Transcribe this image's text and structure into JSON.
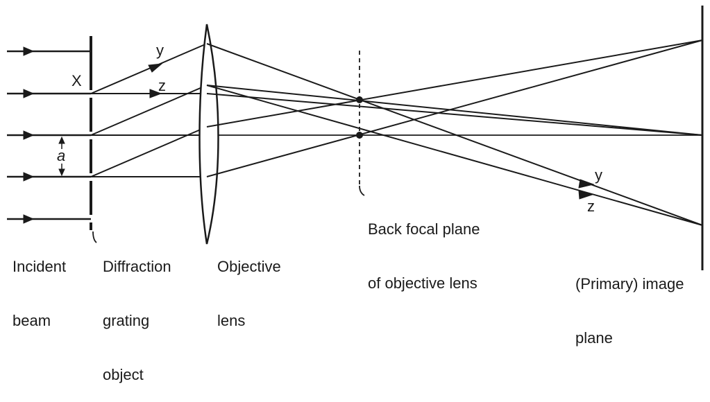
{
  "diagram": {
    "labels": {
      "x": "X",
      "y_upper": "y",
      "z_upper": "z",
      "a": "a",
      "y_lower": "y",
      "z_lower": "z",
      "incident_beam_1": "Incident",
      "incident_beam_2": "beam",
      "grating_1": "Diffraction",
      "grating_2": "grating",
      "grating_3": "object",
      "lens_1": "Objective",
      "lens_2": "lens",
      "bfp_1": "Back focal plane",
      "bfp_2": "of objective lens",
      "image_1": "(Primary) image",
      "image_2": "plane"
    }
  }
}
